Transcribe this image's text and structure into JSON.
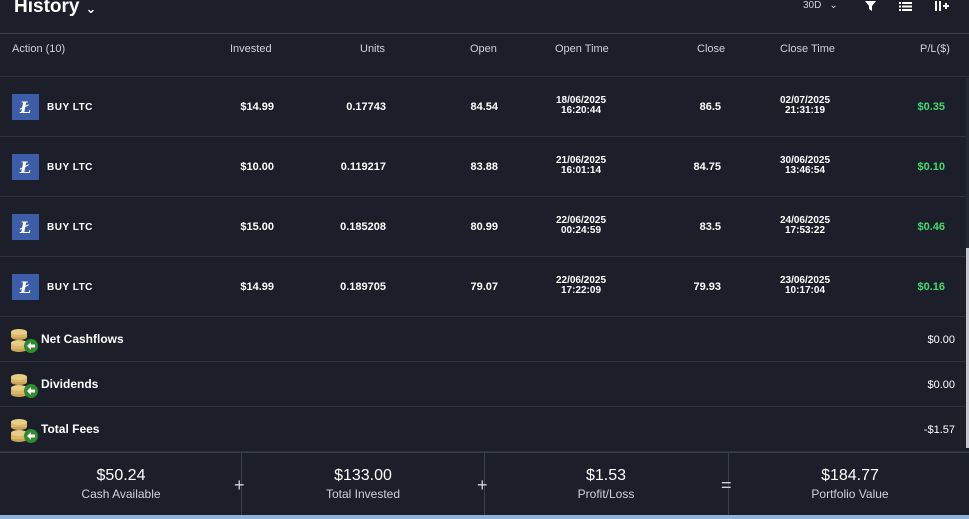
{
  "header": {
    "title": "History",
    "period": "30D"
  },
  "columns": [
    "Action (10)",
    "Invested",
    "Units",
    "Open",
    "Open Time",
    "Close",
    "Close Time",
    "P/L($)"
  ],
  "trades": [
    {
      "action": "BUY LTC",
      "invested": "$14.99",
      "units": "0.17743",
      "open": "84.54",
      "open_date": "18/06/2025",
      "open_time": "16:20:44",
      "close": "86.5",
      "close_date": "02/07/2025",
      "close_time": "21:31:19",
      "pl": "$0.35"
    },
    {
      "action": "BUY LTC",
      "invested": "$10.00",
      "units": "0.119217",
      "open": "83.88",
      "open_date": "21/06/2025",
      "open_time": "16:01:14",
      "close": "84.75",
      "close_date": "30/06/2025",
      "close_time": "13:46:54",
      "pl": "$0.10"
    },
    {
      "action": "BUY LTC",
      "invested": "$15.00",
      "units": "0.185208",
      "open": "80.99",
      "open_date": "22/06/2025",
      "open_time": "00:24:59",
      "close": "83.5",
      "close_date": "24/06/2025",
      "close_time": "17:53:22",
      "pl": "$0.46"
    },
    {
      "action": "BUY LTC",
      "invested": "$14.99",
      "units": "0.189705",
      "open": "79.07",
      "open_date": "22/06/2025",
      "open_time": "17:22:09",
      "close": "79.93",
      "close_date": "23/06/2025",
      "close_time": "10:17:04",
      "pl": "$0.16"
    }
  ],
  "summary": [
    {
      "label": "Net Cashflows",
      "value": "$0.00"
    },
    {
      "label": "Dividends",
      "value": "$0.00"
    },
    {
      "label": "Total Fees",
      "value": "-$1.57"
    }
  ],
  "footer": {
    "cash": {
      "value": "$50.24",
      "label": "Cash Available"
    },
    "invested": {
      "value": "$133.00",
      "label": "Total Invested"
    },
    "pl": {
      "value": "$1.53",
      "label": "Profit/Loss"
    },
    "portfolio": {
      "value": "$184.77",
      "label": "Portfolio Value"
    },
    "plus1": "+",
    "plus2": "+",
    "equals": "="
  },
  "colors": {
    "profit": "#3ddc6f",
    "ltc": "#3d5da8",
    "background": "#1c1e2a"
  },
  "icons": [
    "chevron-down-icon",
    "filter-icon",
    "list-icon",
    "columns-icon",
    "ltc-icon",
    "coins-icon"
  ]
}
